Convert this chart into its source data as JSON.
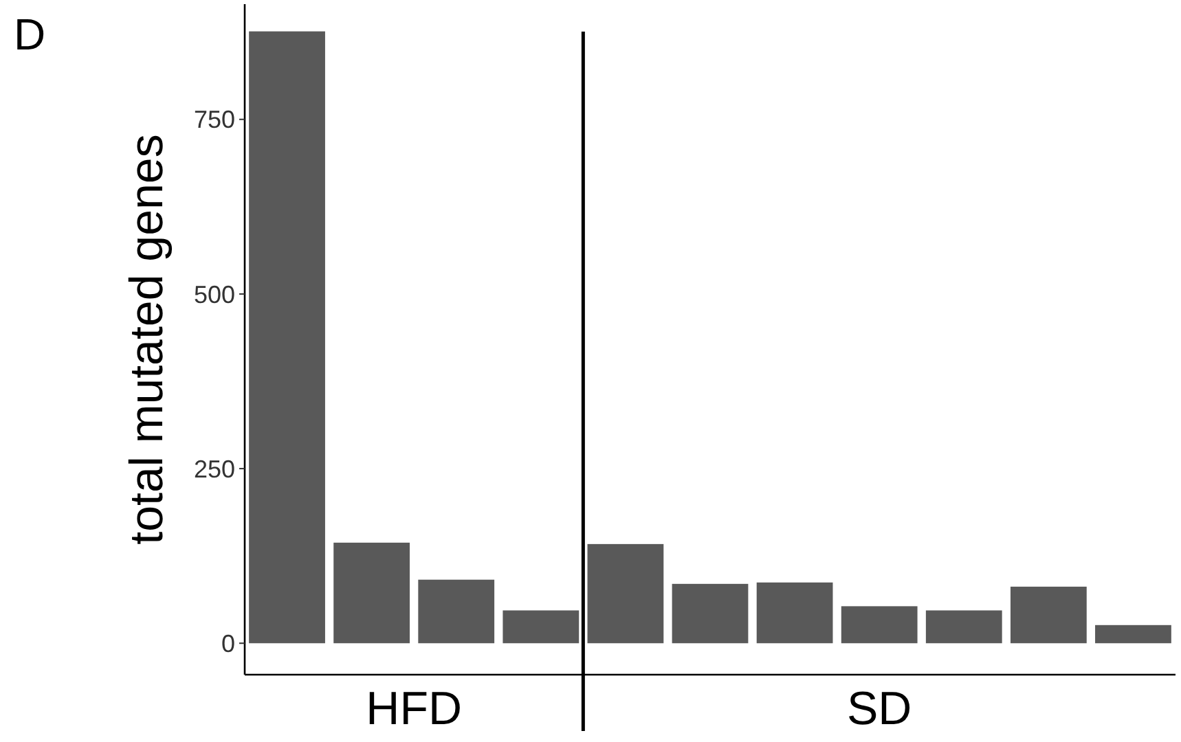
{
  "chart_data": {
    "type": "bar",
    "title": "D",
    "ylabel": "total mutated genes",
    "categories": [
      null,
      null,
      null,
      null,
      null,
      null,
      null,
      null,
      null,
      null,
      null
    ],
    "values": [
      876,
      144,
      91,
      47,
      142,
      85,
      87,
      53,
      47,
      81,
      26
    ],
    "color": "#595959",
    "ylim": [
      -45,
      915
    ],
    "yticks": [
      0,
      250,
      500,
      750
    ],
    "grid": false,
    "annotations": [
      "HFD",
      "SD"
    ]
  }
}
